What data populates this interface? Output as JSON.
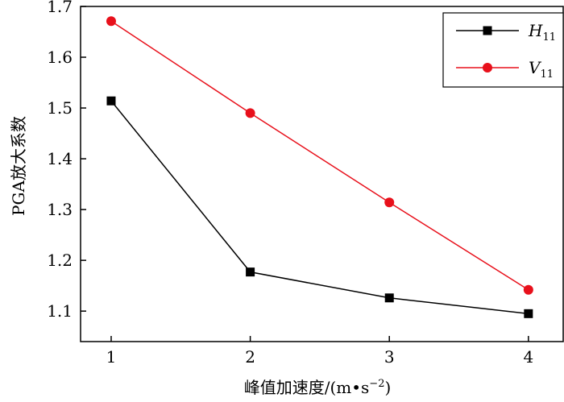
{
  "chart_data": {
    "type": "line",
    "title": "",
    "xlabel": "峰值加速度/(m•s",
    "xlabel_exponent": "−2",
    "xlabel_close": ")",
    "ylabel": "PGA放大系数",
    "x": [
      1,
      2,
      3,
      4
    ],
    "xlim": [
      0.78,
      4.25
    ],
    "ylim": [
      1.04,
      1.7
    ],
    "xticks": [
      "1",
      "2",
      "3",
      "4"
    ],
    "yticks": [
      "1.1",
      "1.2",
      "1.3",
      "1.4",
      "1.5",
      "1.6",
      "1.7"
    ],
    "grid": false,
    "legend_position": "top-right",
    "series": [
      {
        "name": "H",
        "subscript": "11",
        "marker": "square",
        "color": "#000000",
        "values": [
          1.514,
          1.177,
          1.126,
          1.095
        ]
      },
      {
        "name": "V",
        "subscript": "11",
        "marker": "circle",
        "color": "#e8101b",
        "values": [
          1.671,
          1.49,
          1.314,
          1.142
        ]
      }
    ]
  }
}
